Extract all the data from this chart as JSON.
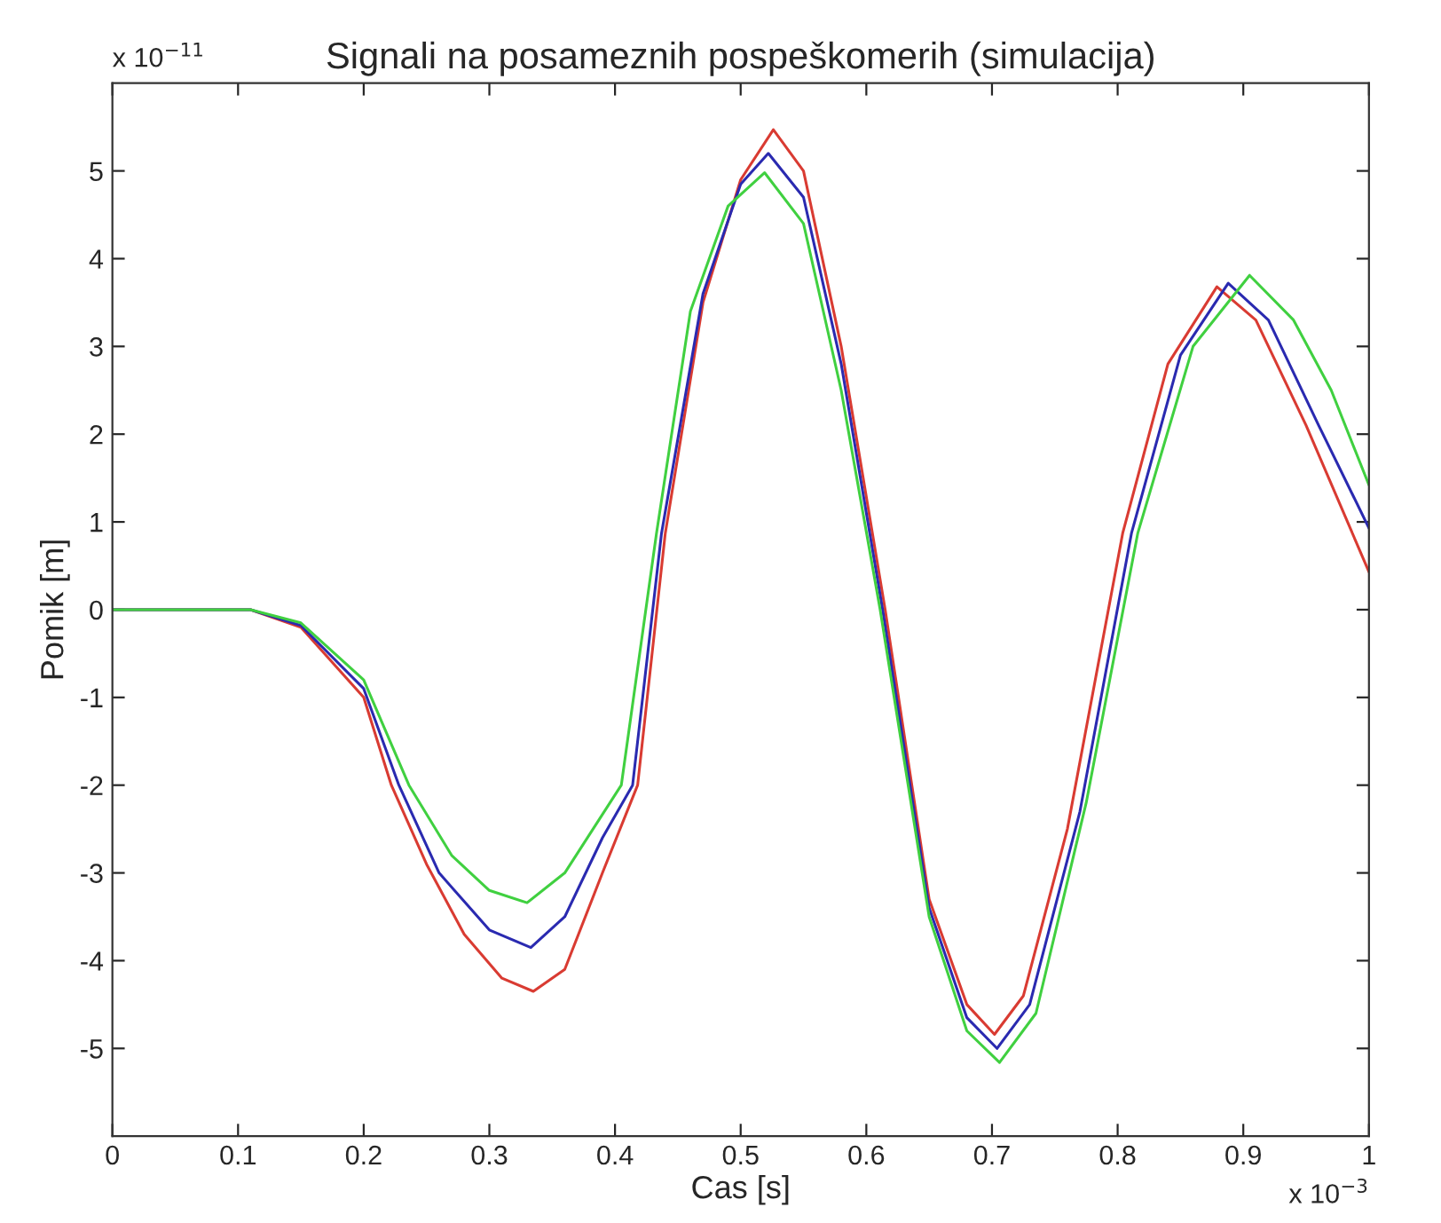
{
  "chart_data": {
    "type": "line",
    "title": "Signali na posameznih pospeškomerih (simulacija)",
    "xlabel": "Cas [s]",
    "ylabel": "Pomik [m]",
    "annotations": [
      "x 10$^{−11}$",
      "x 10$^{−3}$"
    ],
    "xlim": [
      0,
      1
    ],
    "ylim": [
      -6,
      6
    ],
    "xticks": [
      0,
      0.1,
      0.2,
      0.3,
      0.4,
      0.5,
      0.6,
      0.7,
      0.8,
      0.9,
      1
    ],
    "yticks": [
      -5,
      -4,
      -3,
      -2,
      -1,
      0,
      1,
      2,
      3,
      4,
      5
    ],
    "grid": false,
    "line_style": "solid",
    "series": [
      {
        "color": "#d93b32",
        "x": [
          0,
          0.11,
          0.15,
          0.2,
          0.222,
          0.25,
          0.28,
          0.31,
          0.335,
          0.36,
          0.39,
          0.418,
          0.44,
          0.47,
          0.5,
          0.526,
          0.55,
          0.58,
          0.615,
          0.65,
          0.68,
          0.702,
          0.725,
          0.76,
          0.804,
          0.84,
          0.879,
          0.91,
          0.95,
          1.0
        ],
        "values": [
          0,
          0,
          -0.2,
          -1.0,
          -2,
          -2.9,
          -3.7,
          -4.2,
          -4.35,
          -4.1,
          -3.0,
          -2,
          0.87,
          3.5,
          4.9,
          5.47,
          5.0,
          3.0,
          0,
          -3.3,
          -4.5,
          -4.84,
          -4.4,
          -2.5,
          0.87,
          2.8,
          3.68,
          3.3,
          2.1,
          0.43
        ]
      },
      {
        "color": "#2a2ab0",
        "x": [
          0,
          0.11,
          0.15,
          0.2,
          0.228,
          0.26,
          0.3,
          0.333,
          0.36,
          0.39,
          0.414,
          0.437,
          0.47,
          0.5,
          0.522,
          0.55,
          0.58,
          0.613,
          0.65,
          0.68,
          0.704,
          0.73,
          0.77,
          0.811,
          0.85,
          0.888,
          0.92,
          0.96,
          1.0
        ],
        "values": [
          0,
          0,
          -0.18,
          -0.9,
          -2,
          -3.0,
          -3.65,
          -3.85,
          -3.5,
          -2.6,
          -2,
          0.87,
          3.6,
          4.85,
          5.2,
          4.7,
          2.8,
          0,
          -3.4,
          -4.65,
          -5.0,
          -4.5,
          -2.3,
          0.87,
          2.9,
          3.72,
          3.3,
          2.1,
          0.93
        ]
      },
      {
        "color": "#40d040",
        "x": [
          0,
          0.11,
          0.15,
          0.2,
          0.236,
          0.27,
          0.3,
          0.33,
          0.36,
          0.405,
          0.433,
          0.46,
          0.49,
          0.519,
          0.55,
          0.58,
          0.611,
          0.65,
          0.68,
          0.706,
          0.735,
          0.775,
          0.816,
          0.86,
          0.905,
          0.94,
          0.97,
          1.0
        ],
        "values": [
          0,
          0,
          -0.15,
          -0.8,
          -2,
          -2.8,
          -3.2,
          -3.34,
          -3.0,
          -2,
          0.87,
          3.4,
          4.6,
          4.98,
          4.4,
          2.5,
          0,
          -3.5,
          -4.8,
          -5.16,
          -4.6,
          -2.2,
          0.87,
          3.0,
          3.81,
          3.3,
          2.5,
          1.42
        ]
      }
    ]
  }
}
